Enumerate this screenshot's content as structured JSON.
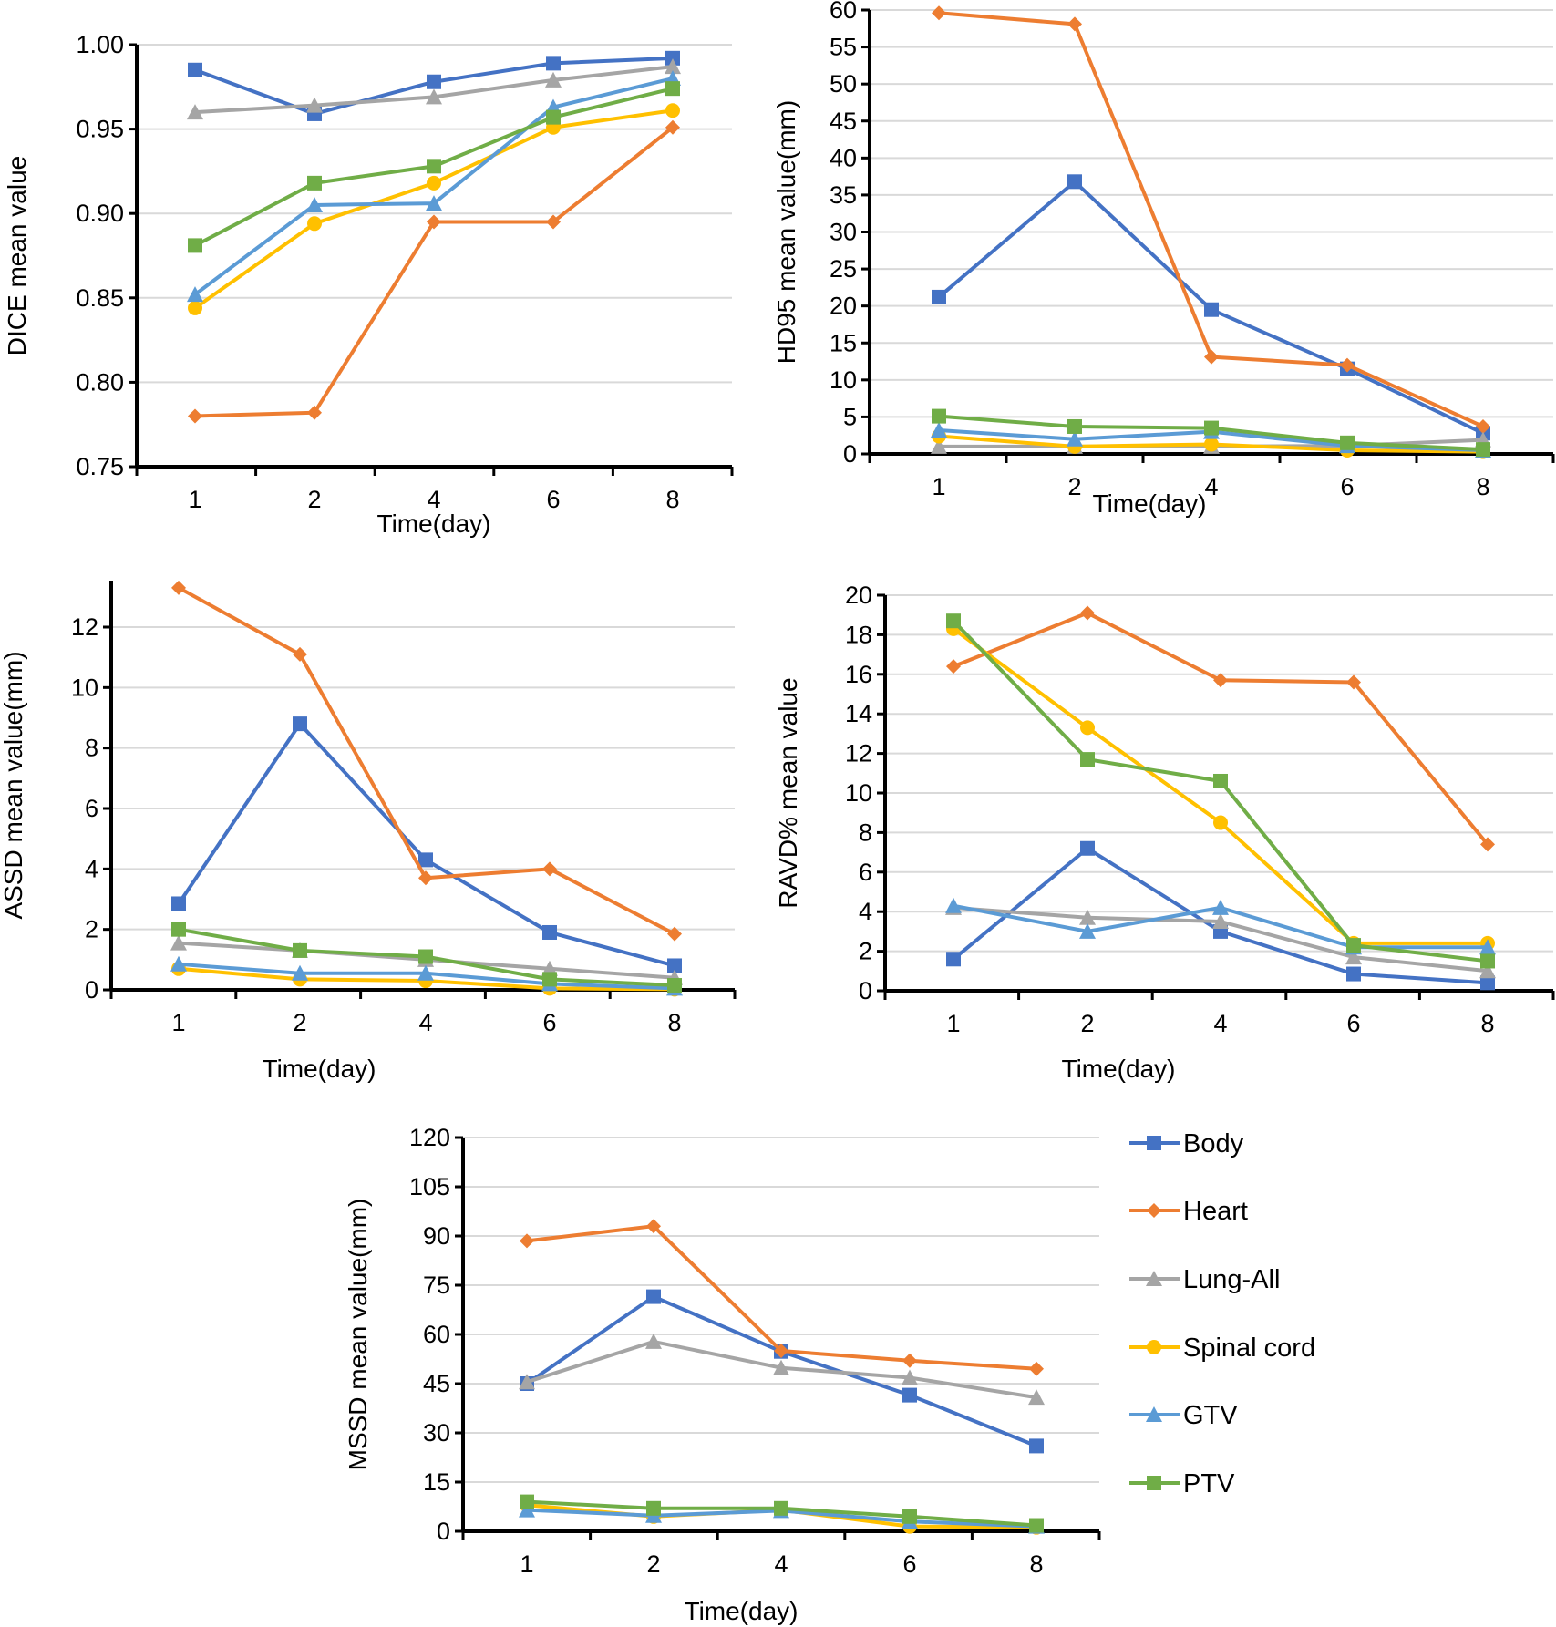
{
  "series_styles": [
    {
      "name": "Body",
      "color": "#4472C4",
      "marker": "square"
    },
    {
      "name": "Heart",
      "color": "#ED7D31",
      "marker": "diamond"
    },
    {
      "name": "Lung-All",
      "color": "#A5A5A5",
      "marker": "triangle"
    },
    {
      "name": "Spinal cord",
      "color": "#FFC000",
      "marker": "circle"
    },
    {
      "name": "GTV",
      "color": "#5B9BD5",
      "marker": "triangle"
    },
    {
      "name": "PTV",
      "color": "#70AD47",
      "marker": "square"
    }
  ],
  "legend": {
    "placement": "right of bottom chart",
    "items": [
      "Body",
      "Heart",
      "Lung-All",
      "Spinal cord",
      "GTV",
      "PTV"
    ]
  },
  "chart_data": [
    {
      "id": "dice",
      "type": "line",
      "title": "",
      "xlabel": "Time(day)",
      "ylabel": "DICE mean value",
      "categories": [
        "1",
        "2",
        "4",
        "6",
        "8"
      ],
      "ylim": [
        0.75,
        1.0
      ],
      "yticks": [
        "0.75",
        "0.80",
        "0.85",
        "0.90",
        "0.95",
        "1.00"
      ],
      "ytick_values": [
        0.75,
        0.8,
        0.85,
        0.9,
        0.95,
        1.0
      ],
      "grid": true,
      "series": [
        {
          "name": "Body",
          "values": [
            0.985,
            0.959,
            0.978,
            0.989,
            0.992
          ]
        },
        {
          "name": "Heart",
          "values": [
            0.78,
            0.782,
            0.895,
            0.895,
            0.951
          ]
        },
        {
          "name": "Lung-All",
          "values": [
            0.96,
            0.964,
            0.969,
            0.979,
            0.987
          ]
        },
        {
          "name": "Spinal cord",
          "values": [
            0.844,
            0.894,
            0.918,
            0.951,
            0.961
          ]
        },
        {
          "name": "GTV",
          "values": [
            0.852,
            0.905,
            0.906,
            0.963,
            0.98
          ]
        },
        {
          "name": "PTV",
          "values": [
            0.881,
            0.918,
            0.928,
            0.957,
            0.974
          ]
        }
      ]
    },
    {
      "id": "hd95",
      "type": "line",
      "title": "",
      "xlabel": "Time(day)",
      "ylabel": "HD95 mean value(mm)",
      "categories": [
        "1",
        "2",
        "4",
        "6",
        "8"
      ],
      "ylim": [
        0,
        60
      ],
      "yticks": [
        "0",
        "5",
        "10",
        "15",
        "20",
        "25",
        "30",
        "35",
        "40",
        "45",
        "50",
        "55",
        "60"
      ],
      "ytick_values": [
        0,
        5,
        10,
        15,
        20,
        25,
        30,
        35,
        40,
        45,
        50,
        55,
        60
      ],
      "grid": true,
      "series": [
        {
          "name": "Body",
          "values": [
            21.2,
            36.8,
            19.5,
            11.5,
            2.8
          ]
        },
        {
          "name": "Heart",
          "values": [
            59.6,
            58.1,
            13.1,
            12.0,
            3.7
          ]
        },
        {
          "name": "Lung-All",
          "values": [
            1.0,
            1.0,
            1.0,
            1.1,
            1.9
          ]
        },
        {
          "name": "Spinal cord",
          "values": [
            2.4,
            1.0,
            1.3,
            0.5,
            0.3
          ]
        },
        {
          "name": "GTV",
          "values": [
            3.2,
            2.0,
            3.0,
            1.1,
            0.5
          ]
        },
        {
          "name": "PTV",
          "values": [
            5.1,
            3.7,
            3.5,
            1.5,
            0.6
          ]
        }
      ]
    },
    {
      "id": "assd",
      "type": "line",
      "title": "",
      "xlabel": "Time(day)",
      "ylabel": "ASSD mean value(mm)",
      "categories": [
        "1",
        "2",
        "4",
        "6",
        "8"
      ],
      "ylim": [
        0,
        13.5
      ],
      "yticks": [
        "0",
        "2",
        "4",
        "6",
        "8",
        "10",
        "12"
      ],
      "ytick_values": [
        0,
        2,
        4,
        6,
        8,
        10,
        12
      ],
      "grid": true,
      "series": [
        {
          "name": "Body",
          "values": [
            2.85,
            8.8,
            4.3,
            1.9,
            0.8
          ]
        },
        {
          "name": "Heart",
          "values": [
            13.3,
            11.1,
            3.7,
            4.0,
            1.85
          ]
        },
        {
          "name": "Lung-All",
          "values": [
            1.55,
            1.3,
            1.0,
            0.7,
            0.4
          ]
        },
        {
          "name": "Spinal cord",
          "values": [
            0.7,
            0.35,
            0.3,
            0.05,
            0.02
          ]
        },
        {
          "name": "GTV",
          "values": [
            0.85,
            0.55,
            0.55,
            0.2,
            0.05
          ]
        },
        {
          "name": "PTV",
          "values": [
            2.0,
            1.3,
            1.1,
            0.35,
            0.15
          ]
        }
      ]
    },
    {
      "id": "ravd",
      "type": "line",
      "title": "",
      "xlabel": "Time(day)",
      "ylabel": "RAVD% mean value",
      "categories": [
        "1",
        "2",
        "4",
        "6",
        "8"
      ],
      "ylim": [
        0,
        20
      ],
      "yticks": [
        "0",
        "2",
        "4",
        "6",
        "8",
        "10",
        "12",
        "14",
        "16",
        "18",
        "20"
      ],
      "ytick_values": [
        0,
        2,
        4,
        6,
        8,
        10,
        12,
        14,
        16,
        18,
        20
      ],
      "grid": true,
      "series": [
        {
          "name": "Body",
          "values": [
            1.6,
            7.2,
            3.0,
            0.85,
            0.4
          ]
        },
        {
          "name": "Heart",
          "values": [
            16.4,
            19.1,
            15.7,
            15.6,
            7.4
          ]
        },
        {
          "name": "Lung-All",
          "values": [
            4.2,
            3.7,
            3.5,
            1.7,
            1.0
          ]
        },
        {
          "name": "Spinal cord",
          "values": [
            18.3,
            13.3,
            8.5,
            2.4,
            2.4
          ]
        },
        {
          "name": "GTV",
          "values": [
            4.3,
            3.0,
            4.2,
            2.2,
            2.2
          ]
        },
        {
          "name": "PTV",
          "values": [
            18.7,
            11.7,
            10.6,
            2.3,
            1.5
          ]
        }
      ]
    },
    {
      "id": "mssd",
      "type": "line",
      "title": "",
      "xlabel": "Time(day)",
      "ylabel": "MSSD mean value(mm)",
      "categories": [
        "1",
        "2",
        "4",
        "6",
        "8"
      ],
      "ylim": [
        0,
        120
      ],
      "yticks": [
        "0",
        "15",
        "30",
        "45",
        "60",
        "75",
        "90",
        "105",
        "120"
      ],
      "ytick_values": [
        0,
        15,
        30,
        45,
        60,
        75,
        90,
        105,
        120
      ],
      "grid": true,
      "series": [
        {
          "name": "Body",
          "values": [
            45.0,
            71.5,
            54.8,
            41.5,
            26.0
          ]
        },
        {
          "name": "Heart",
          "values": [
            88.5,
            93.0,
            55.0,
            52.0,
            49.5
          ]
        },
        {
          "name": "Lung-All",
          "values": [
            45.5,
            57.8,
            49.8,
            46.8,
            40.8
          ]
        },
        {
          "name": "Spinal cord",
          "values": [
            8.0,
            4.5,
            6.5,
            1.5,
            1.2
          ]
        },
        {
          "name": "GTV",
          "values": [
            6.5,
            4.8,
            6.3,
            3.0,
            1.5
          ]
        },
        {
          "name": "PTV",
          "values": [
            9.0,
            7.0,
            7.0,
            4.5,
            1.8
          ]
        }
      ]
    }
  ]
}
